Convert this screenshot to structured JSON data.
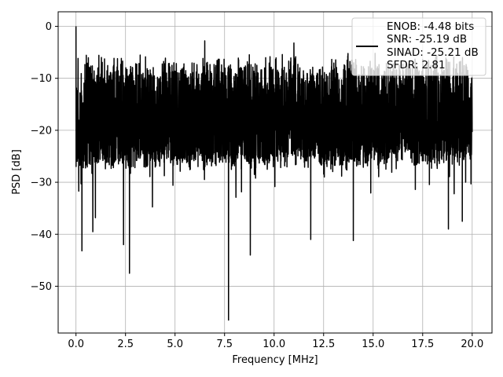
{
  "chart_data": {
    "type": "line",
    "title": "",
    "xlabel": "Frequency [MHz]",
    "ylabel": "PSD [dB]",
    "xlim": [
      -0.9,
      21.0
    ],
    "ylim": [
      -59,
      2.8
    ],
    "xticks": [
      "0.0",
      "2.5",
      "5.0",
      "7.5",
      "10.0",
      "12.5",
      "15.0",
      "17.5",
      "20.0"
    ],
    "yticks": [
      "0",
      "−10",
      "−20",
      "−30",
      "−40",
      "−50"
    ],
    "grid": true,
    "legend_position": "top-right",
    "series": [
      {
        "name": "ENOB: -4.48 bits\nSNR: -25.19 dB\nSINAD: -25.21 dB\nSFDR: 2.81",
        "color": "#000000",
        "x_range": [
          0,
          20
        ],
        "typical_range_db": [
          -25,
          -5
        ],
        "notable_points": [
          {
            "x": 0.0,
            "y": 0.0
          },
          {
            "x": 0.3,
            "y": -43.2
          },
          {
            "x": 0.85,
            "y": -39.5
          },
          {
            "x": 2.4,
            "y": -42.0
          },
          {
            "x": 2.7,
            "y": -47.5
          },
          {
            "x": 7.7,
            "y": -56.5
          },
          {
            "x": 8.8,
            "y": -44.0
          },
          {
            "x": 11.85,
            "y": -41.0
          },
          {
            "x": 14.0,
            "y": -41.2
          },
          {
            "x": 18.8,
            "y": -39.0
          },
          {
            "x": 19.5,
            "y": -37.5
          },
          {
            "x": 6.5,
            "y": -2.8
          },
          {
            "x": 11.0,
            "y": -3.2
          }
        ]
      }
    ],
    "legend_lines": [
      "ENOB: -4.48 bits",
      "SNR: -25.19 dB",
      "SINAD: -25.21 dB",
      "SFDR: 2.81"
    ]
  }
}
